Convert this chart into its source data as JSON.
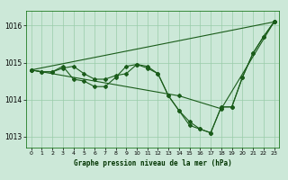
{
  "title": "Graphe pression niveau de la mer (hPa)",
  "background_color": "#cce8d8",
  "grid_color": "#99ccaa",
  "line_color": "#1a5c1a",
  "ylim": [
    1012.7,
    1016.4
  ],
  "xlim": [
    -0.5,
    23.5
  ],
  "yticks": [
    1013,
    1014,
    1015,
    1016
  ],
  "xticks": [
    0,
    1,
    2,
    3,
    4,
    5,
    6,
    7,
    8,
    9,
    10,
    11,
    12,
    13,
    14,
    15,
    16,
    17,
    18,
    19,
    20,
    21,
    22,
    23
  ],
  "series_detail1_x": [
    0,
    1,
    2,
    3,
    4,
    5,
    6,
    7,
    8,
    9,
    10,
    11,
    12,
    13,
    14,
    15,
    16,
    17,
    18,
    19,
    20,
    21,
    22,
    23
  ],
  "series_detail1_y": [
    1014.8,
    1014.75,
    1014.75,
    1014.85,
    1014.9,
    1014.7,
    1014.55,
    1014.55,
    1014.65,
    1014.7,
    1014.95,
    1014.85,
    1014.7,
    1014.1,
    1013.7,
    1013.3,
    1013.2,
    1013.1,
    1013.8,
    1013.8,
    1014.6,
    1015.25,
    1015.7,
    1016.1
  ],
  "series_detail2_x": [
    0,
    1,
    2,
    3,
    4,
    5,
    6,
    7,
    8,
    9,
    10,
    11,
    12,
    13,
    14,
    15,
    16,
    17,
    18,
    19,
    20,
    21,
    22,
    23
  ],
  "series_detail2_y": [
    1014.8,
    1014.75,
    1014.75,
    1014.9,
    1014.55,
    1014.5,
    1014.35,
    1014.35,
    1014.6,
    1014.9,
    1014.95,
    1014.9,
    1014.7,
    1014.1,
    1013.7,
    1013.4,
    1013.2,
    1013.1,
    1013.8,
    1013.8,
    1014.6,
    1015.25,
    1015.7,
    1016.1
  ],
  "series_trend1_x": [
    0,
    23
  ],
  "series_trend1_y": [
    1014.8,
    1016.1
  ],
  "series_trend2_x": [
    0,
    14,
    18,
    23
  ],
  "series_trend2_y": [
    1014.8,
    1014.1,
    1013.75,
    1016.1
  ]
}
